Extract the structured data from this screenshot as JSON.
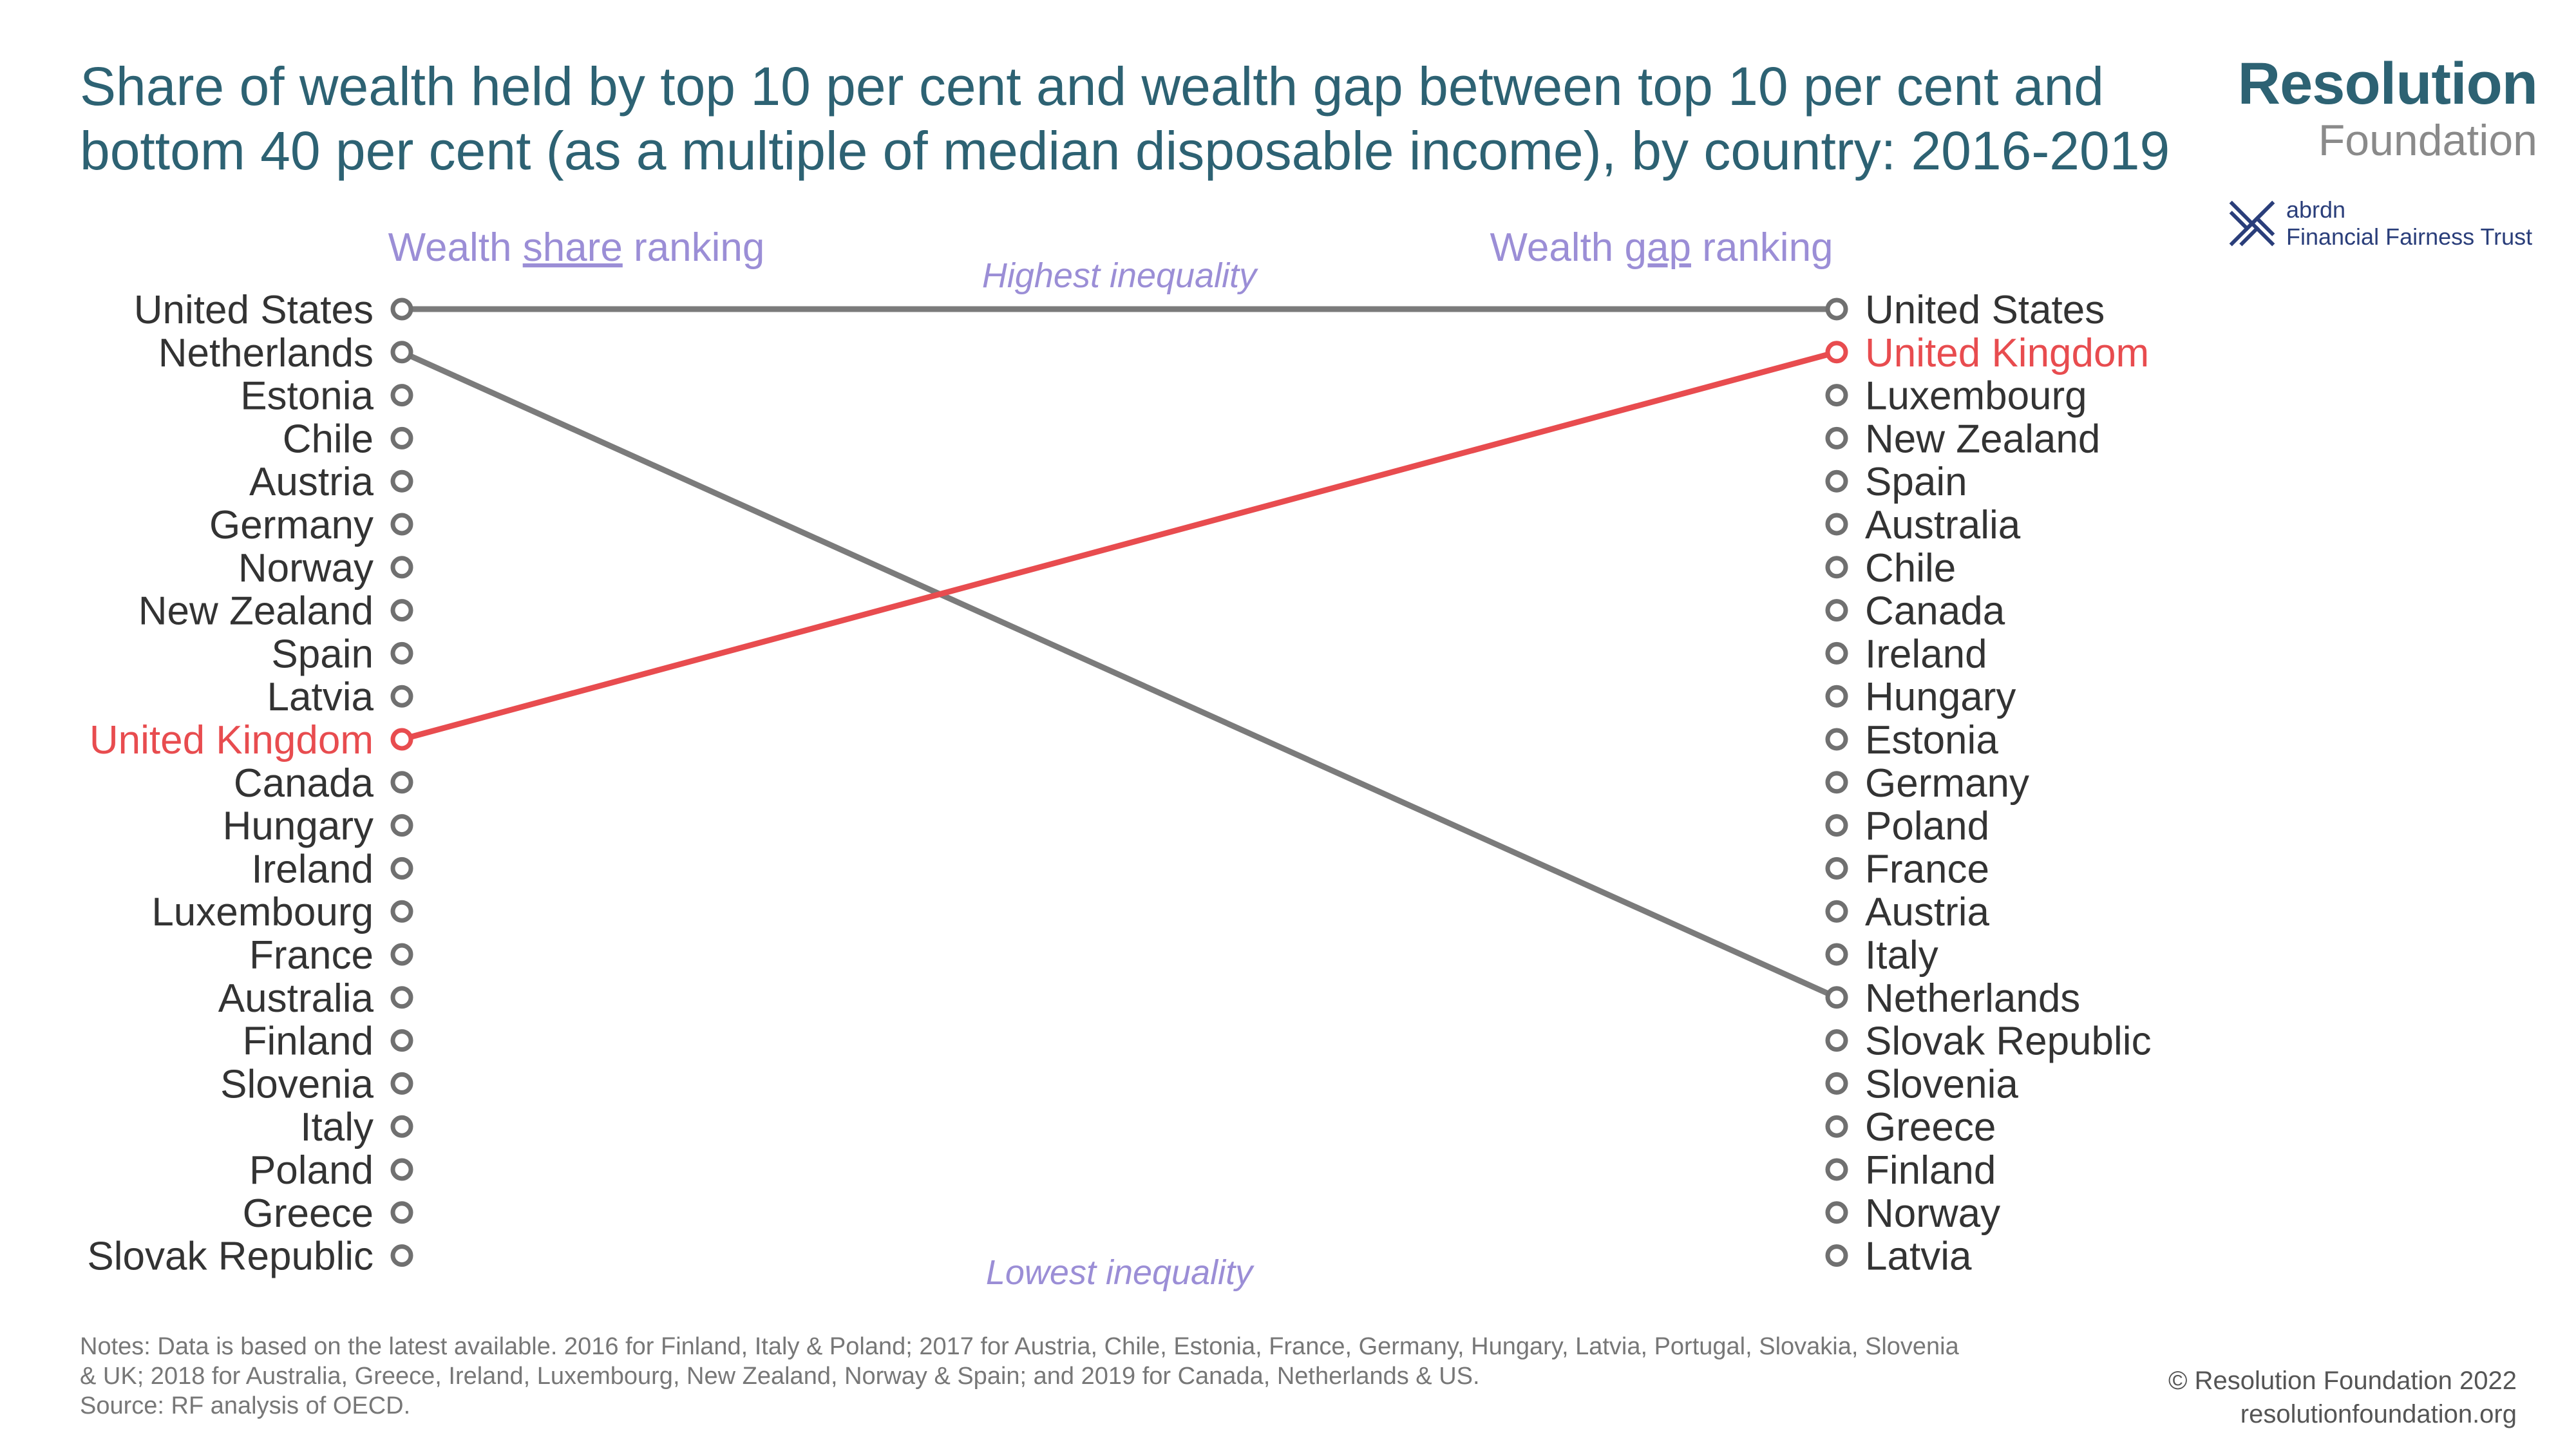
{
  "title_lines": [
    "Share of wealth held by top 10 per cent and wealth gap between top 10 per cent and",
    "bottom 40 per cent (as a multiple of median disposable income), by country: 2016-2019"
  ],
  "brand": {
    "name": "Resolution",
    "sub": "Foundation"
  },
  "partner": {
    "line1": "abrdn",
    "line2": "Financial Fairness Trust",
    "icon": "abrdn-cross-logo"
  },
  "colors": {
    "title": "#2d6273",
    "highlight": "#e84c4f",
    "line": "#7b7b7b",
    "marker": "#707070",
    "label": "#9b8ed6"
  },
  "chart_data": {
    "type": "slope",
    "left_header": {
      "prefix": "Wealth ",
      "underlined": "share",
      "suffix": " ranking"
    },
    "right_header": {
      "prefix": "Wealth ",
      "underlined": "gap",
      "suffix": " ranking"
    },
    "top_annotation": "Highest inequality",
    "bottom_annotation": "Lowest inequality",
    "left_ranking": [
      "United States",
      "Netherlands",
      "Estonia",
      "Chile",
      "Austria",
      "Germany",
      "Norway",
      "New Zealand",
      "Spain",
      "Latvia",
      "United Kingdom",
      "Canada",
      "Hungary",
      "Ireland",
      "Luxembourg",
      "France",
      "Australia",
      "Finland",
      "Slovenia",
      "Italy",
      "Poland",
      "Greece",
      "Slovak Republic"
    ],
    "right_ranking": [
      "United States",
      "United Kingdom",
      "Luxembourg",
      "New Zealand",
      "Spain",
      "Australia",
      "Chile",
      "Canada",
      "Ireland",
      "Hungary",
      "Estonia",
      "Germany",
      "Poland",
      "France",
      "Austria",
      "Italy",
      "Netherlands",
      "Slovak Republic",
      "Slovenia",
      "Greece",
      "Finland",
      "Norway",
      "Latvia"
    ],
    "connected": [
      {
        "country": "United States",
        "left_rank": 1,
        "right_rank": 1,
        "highlight": false
      },
      {
        "country": "Netherlands",
        "left_rank": 2,
        "right_rank": 17,
        "highlight": false
      },
      {
        "country": "United Kingdom",
        "left_rank": 11,
        "right_rank": 2,
        "highlight": true
      }
    ],
    "highlighted_country": "United Kingdom"
  },
  "notes": {
    "line1": "Notes: Data is based on the latest available. 2016 for Finland, Italy & Poland; 2017 for Austria, Chile, Estonia, France, Germany, Hungary, Latvia, Portugal, Slovakia, Slovenia",
    "line2": "& UK; 2018 for Australia, Greece, Ireland, Luxembourg, New Zealand, Norway & Spain; and 2019 for Canada, Netherlands & US.",
    "line3": "Source: RF analysis of OECD."
  },
  "footer": {
    "copyright": "© Resolution Foundation 2022",
    "url": "resolutionfoundation.org"
  }
}
